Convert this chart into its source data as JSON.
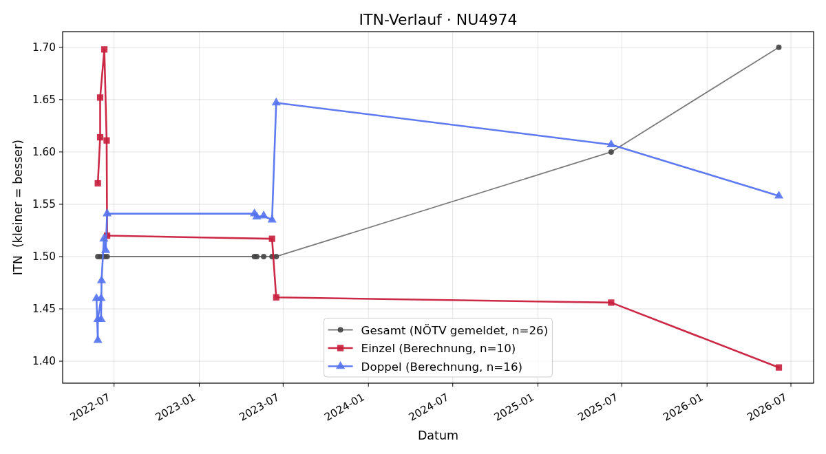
{
  "chart_data": {
    "type": "line",
    "title": "ITN-Verlauf · NU4974",
    "xlabel": "Datum",
    "ylabel": "ITN  (kleiner = besser)",
    "xlim": [
      "2022-03-12",
      "2026-08-19"
    ],
    "xticks": [
      "2022-07",
      "2023-01",
      "2023-07",
      "2024-01",
      "2024-07",
      "2025-01",
      "2025-07",
      "2026-01",
      "2026-07"
    ],
    "ylim": [
      1.379,
      1.715
    ],
    "yticks": [
      {
        "value": 1.4,
        "label": "1.40"
      },
      1.45,
      {
        "value": 1.5,
        "label": "1.50"
      },
      1.55,
      {
        "value": 1.6,
        "label": "1.60"
      },
      1.65,
      {
        "value": 1.7,
        "label": "1.70"
      }
    ],
    "grid": true,
    "legend": "bottom",
    "series": [
      {
        "name": "Gesamt (NÖTV gemeldet, n=26)",
        "color": "#444444",
        "marker": "circle",
        "x": [
          "2022-05-27",
          "2022-06-02",
          "2022-06-10",
          "2022-06-16",
          "2023-04-30",
          "2023-05-05",
          "2023-05-20",
          "2023-06-07",
          "2023-06-16",
          "2025-06-08",
          "2026-06-05"
        ],
        "values": [
          1.5,
          1.5,
          1.5,
          1.5,
          1.5,
          1.5,
          1.5,
          1.5,
          1.5,
          1.6,
          1.7
        ]
      },
      {
        "name": "Einzel (Berechnung, n=10)",
        "color": "#c81e3c",
        "marker": "square",
        "x": [
          "2022-05-27",
          "2022-06-01",
          "2022-06-01",
          "2022-06-10",
          "2022-06-15",
          "2022-06-16",
          "2023-06-07",
          "2023-06-16",
          "2025-06-08",
          "2026-06-05"
        ],
        "values": [
          1.57,
          1.614,
          1.652,
          1.698,
          1.611,
          1.52,
          1.517,
          1.461,
          1.456,
          1.394
        ]
      },
      {
        "name": "Doppel (Berechnung, n=16)",
        "color": "#5573f0",
        "marker": "triangle",
        "x": [
          "2022-05-24",
          "2022-05-27",
          "2022-05-27",
          "2022-06-03",
          "2022-06-03",
          "2022-06-04",
          "2022-06-09",
          "2022-06-13",
          "2022-06-16",
          "2023-04-30",
          "2023-05-05",
          "2023-05-20",
          "2023-06-07",
          "2023-06-16",
          "2025-06-08",
          "2026-06-05"
        ],
        "values": [
          1.46,
          1.42,
          1.44,
          1.46,
          1.44,
          1.477,
          1.517,
          1.506,
          1.541,
          1.541,
          1.538,
          1.539,
          1.535,
          1.647,
          1.607,
          1.558
        ]
      }
    ]
  }
}
